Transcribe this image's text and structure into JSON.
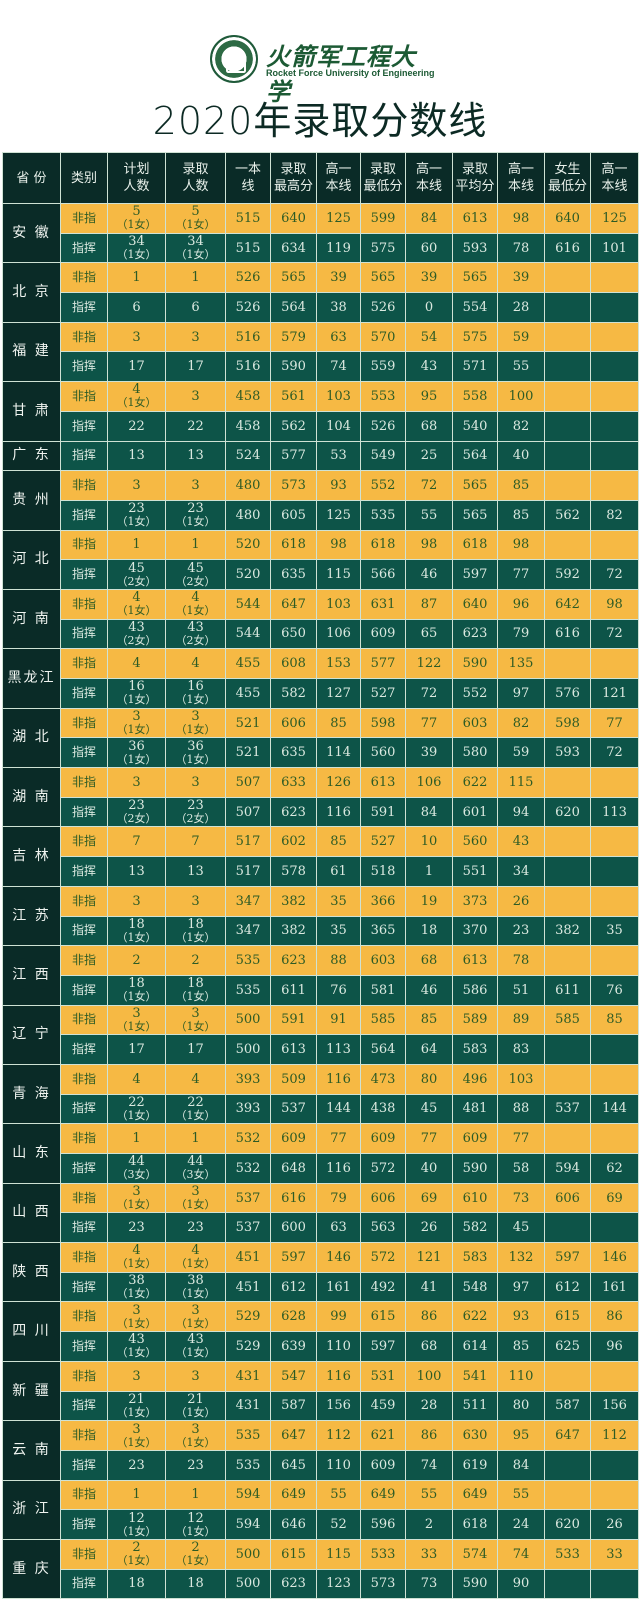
{
  "logo": {
    "name_cn": "火箭军工程大学",
    "name_en": "Rocket Force University of Engineering"
  },
  "title": "2020年录取分数线",
  "headers": [
    [
      "省  份"
    ],
    [
      "类别"
    ],
    [
      "计划",
      "人数"
    ],
    [
      "录取",
      "人数"
    ],
    [
      "一本",
      "线"
    ],
    [
      "录取",
      "最高分"
    ],
    [
      "高一",
      "本线"
    ],
    [
      "录取",
      "最低分"
    ],
    [
      "高一",
      "本线"
    ],
    [
      "录取",
      "平均分"
    ],
    [
      "高一",
      "本线"
    ],
    [
      "女生",
      "最低分"
    ],
    [
      "高一",
      "本线"
    ]
  ],
  "colors": {
    "header_bg": "#0a2b27",
    "yellow_row": "#f6b944",
    "green_row": "#0d5448",
    "yellow_text": "#2d5b25",
    "green_text": "#dbe9e0"
  },
  "provinces": [
    {
      "name": "安  徽",
      "rows": [
        {
          "type": "非指",
          "plan": [
            "5",
            "（1女）"
          ],
          "admit": [
            "5",
            "（1女）"
          ],
          "scores": [
            "515",
            "640",
            "125",
            "599",
            "84",
            "613",
            "98",
            "640",
            "125"
          ]
        },
        {
          "type": "指挥",
          "plan": [
            "34",
            "（1女）"
          ],
          "admit": [
            "34",
            "（1女）"
          ],
          "scores": [
            "515",
            "634",
            "119",
            "575",
            "60",
            "593",
            "78",
            "616",
            "101"
          ]
        }
      ]
    },
    {
      "name": "北  京",
      "rows": [
        {
          "type": "非指",
          "plan": [
            "1"
          ],
          "admit": [
            "1"
          ],
          "scores": [
            "526",
            "565",
            "39",
            "565",
            "39",
            "565",
            "39",
            "",
            ""
          ]
        },
        {
          "type": "指挥",
          "plan": [
            "6"
          ],
          "admit": [
            "6"
          ],
          "scores": [
            "526",
            "564",
            "38",
            "526",
            "0",
            "554",
            "28",
            "",
            ""
          ]
        }
      ]
    },
    {
      "name": "福  建",
      "rows": [
        {
          "type": "非指",
          "plan": [
            "3"
          ],
          "admit": [
            "3"
          ],
          "scores": [
            "516",
            "579",
            "63",
            "570",
            "54",
            "575",
            "59",
            "",
            ""
          ]
        },
        {
          "type": "指挥",
          "plan": [
            "17"
          ],
          "admit": [
            "17"
          ],
          "scores": [
            "516",
            "590",
            "74",
            "559",
            "43",
            "571",
            "55",
            "",
            ""
          ]
        }
      ]
    },
    {
      "name": "甘  肃",
      "rows": [
        {
          "type": "非指",
          "plan": [
            "4",
            "（1女）"
          ],
          "admit": [
            "3"
          ],
          "scores": [
            "458",
            "561",
            "103",
            "553",
            "95",
            "558",
            "100",
            "",
            ""
          ]
        },
        {
          "type": "指挥",
          "plan": [
            "22"
          ],
          "admit": [
            "22"
          ],
          "scores": [
            "458",
            "562",
            "104",
            "526",
            "68",
            "540",
            "82",
            "",
            ""
          ]
        }
      ]
    },
    {
      "name": "广  东",
      "rows": [
        {
          "type": "指挥",
          "plan": [
            "13"
          ],
          "admit": [
            "13"
          ],
          "scores": [
            "524",
            "577",
            "53",
            "549",
            "25",
            "564",
            "40",
            "",
            ""
          ]
        }
      ]
    },
    {
      "name": "贵  州",
      "rows": [
        {
          "type": "非指",
          "plan": [
            "3"
          ],
          "admit": [
            "3"
          ],
          "scores": [
            "480",
            "573",
            "93",
            "552",
            "72",
            "565",
            "85",
            "",
            ""
          ]
        },
        {
          "type": "指挥",
          "plan": [
            "23",
            "（1女）"
          ],
          "admit": [
            "23",
            "（1女）"
          ],
          "scores": [
            "480",
            "605",
            "125",
            "535",
            "55",
            "565",
            "85",
            "562",
            "82"
          ]
        }
      ]
    },
    {
      "name": "河  北",
      "rows": [
        {
          "type": "非指",
          "plan": [
            "1"
          ],
          "admit": [
            "1"
          ],
          "scores": [
            "520",
            "618",
            "98",
            "618",
            "98",
            "618",
            "98",
            "",
            ""
          ]
        },
        {
          "type": "指挥",
          "plan": [
            "45",
            "（2女）"
          ],
          "admit": [
            "45",
            "（2女）"
          ],
          "scores": [
            "520",
            "635",
            "115",
            "566",
            "46",
            "597",
            "77",
            "592",
            "72"
          ]
        }
      ]
    },
    {
      "name": "河  南",
      "rows": [
        {
          "type": "非指",
          "plan": [
            "4",
            "（1女）"
          ],
          "admit": [
            "4",
            "（1女）"
          ],
          "scores": [
            "544",
            "647",
            "103",
            "631",
            "87",
            "640",
            "96",
            "642",
            "98"
          ]
        },
        {
          "type": "指挥",
          "plan": [
            "43",
            "（2女）"
          ],
          "admit": [
            "43",
            "（2女）"
          ],
          "scores": [
            "544",
            "650",
            "106",
            "609",
            "65",
            "623",
            "79",
            "616",
            "72"
          ]
        }
      ]
    },
    {
      "name": "黑龙江",
      "rows": [
        {
          "type": "非指",
          "plan": [
            "4"
          ],
          "admit": [
            "4"
          ],
          "scores": [
            "455",
            "608",
            "153",
            "577",
            "122",
            "590",
            "135",
            "",
            ""
          ]
        },
        {
          "type": "指挥",
          "plan": [
            "16",
            "（1女）"
          ],
          "admit": [
            "16",
            "（1女）"
          ],
          "scores": [
            "455",
            "582",
            "127",
            "527",
            "72",
            "552",
            "97",
            "576",
            "121"
          ]
        }
      ]
    },
    {
      "name": "湖  北",
      "rows": [
        {
          "type": "非指",
          "plan": [
            "3",
            "（1女）"
          ],
          "admit": [
            "3",
            "（1女）"
          ],
          "scores": [
            "521",
            "606",
            "85",
            "598",
            "77",
            "603",
            "82",
            "598",
            "77"
          ]
        },
        {
          "type": "指挥",
          "plan": [
            "36",
            "（1女）"
          ],
          "admit": [
            "36",
            "（1女）"
          ],
          "scores": [
            "521",
            "635",
            "114",
            "560",
            "39",
            "580",
            "59",
            "593",
            "72"
          ]
        }
      ]
    },
    {
      "name": "湖  南",
      "rows": [
        {
          "type": "非指",
          "plan": [
            "3"
          ],
          "admit": [
            "3"
          ],
          "scores": [
            "507",
            "633",
            "126",
            "613",
            "106",
            "622",
            "115",
            "",
            ""
          ]
        },
        {
          "type": "指挥",
          "plan": [
            "23",
            "（2女）"
          ],
          "admit": [
            "23",
            "（2女）"
          ],
          "scores": [
            "507",
            "623",
            "116",
            "591",
            "84",
            "601",
            "94",
            "620",
            "113"
          ]
        }
      ]
    },
    {
      "name": "吉  林",
      "rows": [
        {
          "type": "非指",
          "plan": [
            "7"
          ],
          "admit": [
            "7"
          ],
          "scores": [
            "517",
            "602",
            "85",
            "527",
            "10",
            "560",
            "43",
            "",
            ""
          ]
        },
        {
          "type": "指挥",
          "plan": [
            "13"
          ],
          "admit": [
            "13"
          ],
          "scores": [
            "517",
            "578",
            "61",
            "518",
            "1",
            "551",
            "34",
            "",
            ""
          ]
        }
      ]
    },
    {
      "name": "江  苏",
      "rows": [
        {
          "type": "非指",
          "plan": [
            "3"
          ],
          "admit": [
            "3"
          ],
          "scores": [
            "347",
            "382",
            "35",
            "366",
            "19",
            "373",
            "26",
            "",
            ""
          ]
        },
        {
          "type": "指挥",
          "plan": [
            "18",
            "（1女）"
          ],
          "admit": [
            "18",
            "（1女）"
          ],
          "scores": [
            "347",
            "382",
            "35",
            "365",
            "18",
            "370",
            "23",
            "382",
            "35"
          ]
        }
      ]
    },
    {
      "name": "江  西",
      "rows": [
        {
          "type": "非指",
          "plan": [
            "2"
          ],
          "admit": [
            "2"
          ],
          "scores": [
            "535",
            "623",
            "88",
            "603",
            "68",
            "613",
            "78",
            "",
            ""
          ]
        },
        {
          "type": "指挥",
          "plan": [
            "18",
            "（1女）"
          ],
          "admit": [
            "18",
            "（1女）"
          ],
          "scores": [
            "535",
            "611",
            "76",
            "581",
            "46",
            "586",
            "51",
            "611",
            "76"
          ]
        }
      ]
    },
    {
      "name": "辽  宁",
      "rows": [
        {
          "type": "非指",
          "plan": [
            "3",
            "（1女）"
          ],
          "admit": [
            "3",
            "（1女）"
          ],
          "scores": [
            "500",
            "591",
            "91",
            "585",
            "85",
            "589",
            "89",
            "585",
            "85"
          ]
        },
        {
          "type": "指挥",
          "plan": [
            "17"
          ],
          "admit": [
            "17"
          ],
          "scores": [
            "500",
            "613",
            "113",
            "564",
            "64",
            "583",
            "83",
            "",
            ""
          ]
        }
      ]
    },
    {
      "name": "青  海",
      "rows": [
        {
          "type": "非指",
          "plan": [
            "4"
          ],
          "admit": [
            "4"
          ],
          "scores": [
            "393",
            "509",
            "116",
            "473",
            "80",
            "496",
            "103",
            "",
            ""
          ]
        },
        {
          "type": "指挥",
          "plan": [
            "22",
            "（1女）"
          ],
          "admit": [
            "22",
            "（1女）"
          ],
          "scores": [
            "393",
            "537",
            "144",
            "438",
            "45",
            "481",
            "88",
            "537",
            "144"
          ]
        }
      ]
    },
    {
      "name": "山  东",
      "rows": [
        {
          "type": "非指",
          "plan": [
            "1"
          ],
          "admit": [
            "1"
          ],
          "scores": [
            "532",
            "609",
            "77",
            "609",
            "77",
            "609",
            "77",
            "",
            ""
          ]
        },
        {
          "type": "指挥",
          "plan": [
            "44",
            "（3女）"
          ],
          "admit": [
            "44",
            "（3女）"
          ],
          "scores": [
            "532",
            "648",
            "116",
            "572",
            "40",
            "590",
            "58",
            "594",
            "62"
          ]
        }
      ]
    },
    {
      "name": "山  西",
      "rows": [
        {
          "type": "非指",
          "plan": [
            "3",
            "（1女）"
          ],
          "admit": [
            "3",
            "（1女）"
          ],
          "scores": [
            "537",
            "616",
            "79",
            "606",
            "69",
            "610",
            "73",
            "606",
            "69"
          ]
        },
        {
          "type": "指挥",
          "plan": [
            "23"
          ],
          "admit": [
            "23"
          ],
          "scores": [
            "537",
            "600",
            "63",
            "563",
            "26",
            "582",
            "45",
            "",
            ""
          ]
        }
      ]
    },
    {
      "name": "陕  西",
      "rows": [
        {
          "type": "非指",
          "plan": [
            "4",
            "（1女）"
          ],
          "admit": [
            "4",
            "（1女）"
          ],
          "scores": [
            "451",
            "597",
            "146",
            "572",
            "121",
            "583",
            "132",
            "597",
            "146"
          ]
        },
        {
          "type": "指挥",
          "plan": [
            "38",
            "（1女）"
          ],
          "admit": [
            "38",
            "（1女）"
          ],
          "scores": [
            "451",
            "612",
            "161",
            "492",
            "41",
            "548",
            "97",
            "612",
            "161"
          ]
        }
      ]
    },
    {
      "name": "四  川",
      "rows": [
        {
          "type": "非指",
          "plan": [
            "3",
            "（1女）"
          ],
          "admit": [
            "3",
            "（1女）"
          ],
          "scores": [
            "529",
            "628",
            "99",
            "615",
            "86",
            "622",
            "93",
            "615",
            "86"
          ]
        },
        {
          "type": "指挥",
          "plan": [
            "43",
            "（1女）"
          ],
          "admit": [
            "43",
            "（1女）"
          ],
          "scores": [
            "529",
            "639",
            "110",
            "597",
            "68",
            "614",
            "85",
            "625",
            "96"
          ]
        }
      ]
    },
    {
      "name": "新  疆",
      "rows": [
        {
          "type": "非指",
          "plan": [
            "3"
          ],
          "admit": [
            "3"
          ],
          "scores": [
            "431",
            "547",
            "116",
            "531",
            "100",
            "541",
            "110",
            "",
            ""
          ]
        },
        {
          "type": "指挥",
          "plan": [
            "21",
            "（1女）"
          ],
          "admit": [
            "21",
            "（1女）"
          ],
          "scores": [
            "431",
            "587",
            "156",
            "459",
            "28",
            "511",
            "80",
            "587",
            "156"
          ]
        }
      ]
    },
    {
      "name": "云  南",
      "rows": [
        {
          "type": "非指",
          "plan": [
            "3",
            "（1女）"
          ],
          "admit": [
            "3",
            "（1女）"
          ],
          "scores": [
            "535",
            "647",
            "112",
            "621",
            "86",
            "630",
            "95",
            "647",
            "112"
          ]
        },
        {
          "type": "指挥",
          "plan": [
            "23"
          ],
          "admit": [
            "23"
          ],
          "scores": [
            "535",
            "645",
            "110",
            "609",
            "74",
            "619",
            "84",
            "",
            ""
          ]
        }
      ]
    },
    {
      "name": "浙  江",
      "rows": [
        {
          "type": "非指",
          "plan": [
            "1"
          ],
          "admit": [
            "1"
          ],
          "scores": [
            "594",
            "649",
            "55",
            "649",
            "55",
            "649",
            "55",
            "",
            ""
          ]
        },
        {
          "type": "指挥",
          "plan": [
            "12",
            "（1女）"
          ],
          "admit": [
            "12",
            "（1女）"
          ],
          "scores": [
            "594",
            "646",
            "52",
            "596",
            "2",
            "618",
            "24",
            "620",
            "26"
          ]
        }
      ]
    },
    {
      "name": "重  庆",
      "rows": [
        {
          "type": "非指",
          "plan": [
            "2",
            "（1女）"
          ],
          "admit": [
            "2",
            "（1女）"
          ],
          "scores": [
            "500",
            "615",
            "115",
            "533",
            "33",
            "574",
            "74",
            "533",
            "33"
          ]
        },
        {
          "type": "指挥",
          "plan": [
            "18"
          ],
          "admit": [
            "18"
          ],
          "scores": [
            "500",
            "623",
            "123",
            "573",
            "73",
            "590",
            "90",
            "",
            ""
          ]
        }
      ]
    }
  ]
}
